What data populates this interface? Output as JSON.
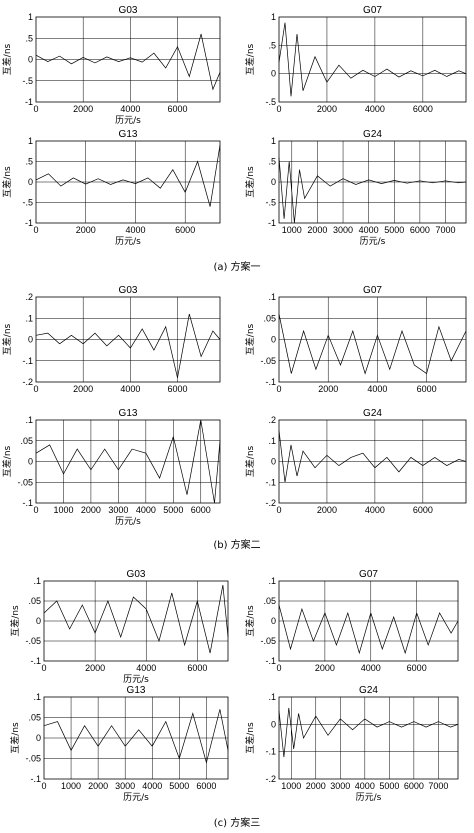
{
  "figure": {
    "captions": [
      "(a) 方案一",
      "(b) 方案二",
      "(c) 方案三"
    ],
    "xlabel": "历元/s",
    "ylabel": "互差/ns"
  },
  "chart_data": [
    {
      "type": "line",
      "group": "(a) 方案一",
      "title": "G03",
      "xlabel": "历元/s",
      "ylabel": "互差/ns",
      "xlim": [
        0,
        7800
      ],
      "ylim": [
        -1,
        1
      ],
      "xticks": [
        0,
        2000,
        4000,
        6000
      ],
      "yticks": [
        -1,
        -0.5,
        0,
        0.5,
        1
      ],
      "grid": true,
      "series": [
        {
          "x": [
            0,
            500,
            1000,
            1500,
            2000,
            2500,
            3000,
            3500,
            4000,
            4500,
            5000,
            5500,
            6000,
            6500,
            7000,
            7500,
            7800
          ],
          "y": [
            0.1,
            -0.05,
            0.08,
            -0.1,
            0.05,
            -0.08,
            0.06,
            -0.05,
            0.04,
            -0.06,
            0.15,
            -0.2,
            0.3,
            -0.4,
            0.6,
            -0.7,
            -0.3
          ]
        }
      ]
    },
    {
      "type": "line",
      "group": "(a) 方案一",
      "title": "G07",
      "xlabel": "",
      "ylabel": "互差/ns",
      "xlim": [
        0,
        7800
      ],
      "ylim": [
        -0.5,
        1
      ],
      "xticks": [
        0,
        2000,
        4000,
        6000
      ],
      "yticks": [
        -0.5,
        0,
        0.5,
        1
      ],
      "grid": true,
      "series": [
        {
          "x": [
            0,
            250,
            500,
            750,
            1000,
            1500,
            2000,
            2500,
            3000,
            3500,
            4000,
            4500,
            5000,
            5500,
            6000,
            6500,
            7000,
            7500,
            7800
          ],
          "y": [
            0.2,
            0.9,
            -0.4,
            0.7,
            -0.3,
            0.3,
            -0.15,
            0.15,
            -0.08,
            0.06,
            -0.05,
            0.08,
            -0.06,
            0.05,
            -0.04,
            0.06,
            -0.05,
            0.05,
            0
          ]
        }
      ]
    },
    {
      "type": "line",
      "group": "(a) 方案一",
      "title": "G13",
      "xlabel": "历元/s",
      "ylabel": "互差/ns",
      "xlim": [
        0,
        7400
      ],
      "ylim": [
        -1,
        1
      ],
      "xticks": [
        0,
        2000,
        4000,
        6000
      ],
      "yticks": [
        -1,
        -0.5,
        0,
        0.5,
        1
      ],
      "grid": true,
      "series": [
        {
          "x": [
            0,
            500,
            1000,
            1500,
            2000,
            2500,
            3000,
            3500,
            4000,
            4500,
            5000,
            5500,
            6000,
            6500,
            7000,
            7400
          ],
          "y": [
            0.05,
            0.2,
            -0.1,
            0.1,
            -0.05,
            0.08,
            -0.06,
            0.05,
            -0.04,
            0.1,
            -0.15,
            0.3,
            -0.25,
            0.5,
            -0.6,
            0.9
          ]
        }
      ]
    },
    {
      "type": "line",
      "group": "(a) 方案一",
      "title": "G24",
      "xlabel": "历元/s",
      "ylabel": "互差/ns",
      "xlim": [
        500,
        7800
      ],
      "ylim": [
        -1,
        1
      ],
      "xticks": [
        1000,
        2000,
        3000,
        4000,
        5000,
        6000,
        7000
      ],
      "yticks": [
        -1,
        -0.5,
        0,
        0.5,
        1
      ],
      "grid": true,
      "series": [
        {
          "x": [
            500,
            700,
            900,
            1100,
            1300,
            1500,
            2000,
            2500,
            3000,
            3500,
            4000,
            4500,
            5000,
            5500,
            6000,
            6500,
            7000,
            7500,
            7800
          ],
          "y": [
            0.6,
            -0.9,
            0.5,
            -1,
            0.3,
            -0.4,
            0.15,
            -0.1,
            0.08,
            -0.06,
            0.05,
            -0.04,
            0.04,
            -0.03,
            0.03,
            -0.02,
            0.03,
            -0.02,
            0
          ]
        }
      ]
    },
    {
      "type": "line",
      "group": "(b) 方案二",
      "title": "G03",
      "xlabel": "",
      "ylabel": "互差/ns",
      "xlim": [
        0,
        7800
      ],
      "ylim": [
        -0.2,
        0.2
      ],
      "xticks": [
        0,
        2000,
        4000,
        6000
      ],
      "yticks": [
        -0.2,
        -0.1,
        0,
        0.1,
        0.2
      ],
      "grid": true,
      "series": [
        {
          "x": [
            0,
            500,
            1000,
            1500,
            2000,
            2500,
            3000,
            3500,
            4000,
            4500,
            5000,
            5500,
            6000,
            6500,
            7000,
            7500,
            7800
          ],
          "y": [
            0.02,
            0.03,
            -0.02,
            0.02,
            -0.02,
            0.03,
            -0.03,
            0.02,
            -0.04,
            0.05,
            -0.05,
            0.06,
            -0.18,
            0.12,
            -0.08,
            0.04,
            0
          ]
        }
      ]
    },
    {
      "type": "line",
      "group": "(b) 方案二",
      "title": "G07",
      "xlabel": "",
      "ylabel": "互差/ns",
      "xlim": [
        0,
        7600
      ],
      "ylim": [
        -0.1,
        0.1
      ],
      "xticks": [
        0,
        2000,
        4000,
        6000
      ],
      "yticks": [
        -0.1,
        -0.05,
        0,
        0.05,
        0.1
      ],
      "grid": true,
      "series": [
        {
          "x": [
            0,
            500,
            1000,
            1500,
            2000,
            2500,
            3000,
            3500,
            4000,
            4500,
            5000,
            5500,
            6000,
            6500,
            7000,
            7600
          ],
          "y": [
            0.06,
            -0.08,
            0.02,
            -0.07,
            0.01,
            -0.06,
            0.02,
            -0.08,
            0.01,
            -0.07,
            0.02,
            -0.06,
            -0.08,
            0.03,
            -0.05,
            0.02
          ]
        }
      ]
    },
    {
      "type": "line",
      "group": "(b) 方案二",
      "title": "G13",
      "xlabel": "历元/s",
      "ylabel": "互差/ns",
      "xlim": [
        0,
        6700
      ],
      "ylim": [
        -0.1,
        0.1
      ],
      "xticks": [
        0,
        1000,
        2000,
        3000,
        4000,
        5000,
        6000
      ],
      "yticks": [
        -0.1,
        -0.05,
        0,
        0.05,
        0.1
      ],
      "grid": true,
      "series": [
        {
          "x": [
            0,
            500,
            1000,
            1500,
            2000,
            2500,
            3000,
            3500,
            4000,
            4500,
            5000,
            5500,
            6000,
            6500,
            6700
          ],
          "y": [
            0.02,
            0.04,
            -0.03,
            0.03,
            -0.02,
            0.03,
            -0.02,
            0.03,
            0.02,
            -0.04,
            0.06,
            -0.08,
            0.1,
            -0.1,
            0.05
          ]
        }
      ]
    },
    {
      "type": "line",
      "group": "(b) 方案二",
      "title": "G24",
      "xlabel": "",
      "ylabel": "互差/ns",
      "xlim": [
        0,
        7800
      ],
      "ylim": [
        -0.2,
        0.2
      ],
      "xticks": [
        0,
        2000,
        4000,
        6000
      ],
      "yticks": [
        -0.2,
        -0.1,
        0,
        0.1,
        0.2
      ],
      "grid": true,
      "series": [
        {
          "x": [
            0,
            250,
            500,
            750,
            1000,
            1500,
            2000,
            2500,
            3000,
            3500,
            4000,
            4500,
            5000,
            5500,
            6000,
            6500,
            7000,
            7500,
            7800
          ],
          "y": [
            0.15,
            -0.1,
            0.08,
            -0.07,
            0.05,
            -0.03,
            0.03,
            -0.02,
            0.02,
            0.04,
            -0.03,
            0.02,
            -0.05,
            0.02,
            -0.02,
            0.02,
            -0.02,
            0.01,
            0
          ]
        }
      ]
    },
    {
      "type": "line",
      "group": "(c) 方案三",
      "title": "G03",
      "xlabel": "历元/s",
      "ylabel": "互差/ns",
      "xlim": [
        0,
        7200
      ],
      "ylim": [
        -0.1,
        0.1
      ],
      "xticks": [
        0,
        2000,
        4000,
        6000
      ],
      "yticks": [
        -0.1,
        -0.05,
        0,
        0.05,
        0.1
      ],
      "grid": true,
      "series": [
        {
          "x": [
            0,
            500,
            1000,
            1500,
            2000,
            2500,
            3000,
            3500,
            4000,
            4500,
            5000,
            5500,
            6000,
            6500,
            7000,
            7200
          ],
          "y": [
            0.02,
            0.05,
            -0.02,
            0.04,
            -0.03,
            0.05,
            -0.04,
            0.06,
            0.03,
            -0.05,
            0.07,
            -0.06,
            0.05,
            -0.08,
            0.09,
            -0.04
          ]
        }
      ]
    },
    {
      "type": "line",
      "group": "(c) 方案三",
      "title": "G07",
      "xlabel": "",
      "ylabel": "互差/ns",
      "xlim": [
        0,
        7800
      ],
      "ylim": [
        -0.1,
        0.1
      ],
      "xticks": [
        0,
        2000,
        4000,
        6000
      ],
      "yticks": [
        -0.1,
        -0.05,
        0,
        0.05,
        0.1
      ],
      "grid": true,
      "series": [
        {
          "x": [
            0,
            500,
            1000,
            1500,
            2000,
            2500,
            3000,
            3500,
            4000,
            4500,
            5000,
            5500,
            6000,
            6500,
            7000,
            7500,
            7800
          ],
          "y": [
            0.04,
            -0.07,
            0.03,
            -0.05,
            0.02,
            -0.06,
            0.02,
            -0.08,
            0.02,
            -0.07,
            0.01,
            -0.08,
            0.02,
            -0.06,
            0.02,
            -0.03,
            0
          ]
        }
      ]
    },
    {
      "type": "line",
      "group": "(c) 方案三",
      "title": "G13",
      "xlabel": "历元/s",
      "ylabel": "互差/ns",
      "xlim": [
        0,
        6800
      ],
      "ylim": [
        -0.1,
        0.1
      ],
      "xticks": [
        0,
        1000,
        2000,
        3000,
        4000,
        5000,
        6000
      ],
      "yticks": [
        -0.1,
        -0.05,
        0,
        0.05,
        0.1
      ],
      "grid": true,
      "series": [
        {
          "x": [
            0,
            500,
            1000,
            1500,
            2000,
            2500,
            3000,
            3500,
            4000,
            4500,
            5000,
            5500,
            6000,
            6500,
            6800
          ],
          "y": [
            0.03,
            0.04,
            -0.03,
            0.03,
            -0.02,
            0.03,
            -0.02,
            0.02,
            -0.02,
            0.04,
            -0.05,
            0.06,
            -0.06,
            0.07,
            -0.03
          ]
        }
      ]
    },
    {
      "type": "line",
      "group": "(c) 方案三",
      "title": "G24",
      "xlabel": "历元/s",
      "ylabel": "互差/ns",
      "xlim": [
        500,
        7800
      ],
      "ylim": [
        -0.2,
        0.1
      ],
      "xticks": [
        1000,
        2000,
        3000,
        4000,
        5000,
        6000,
        7000
      ],
      "yticks": [
        -0.2,
        -0.1,
        0,
        0.1
      ],
      "grid": true,
      "series": [
        {
          "x": [
            500,
            700,
            900,
            1100,
            1300,
            1500,
            2000,
            2500,
            3000,
            3500,
            4000,
            4500,
            5000,
            5500,
            6000,
            6500,
            7000,
            7500,
            7800
          ],
          "y": [
            0.05,
            -0.12,
            0.06,
            -0.09,
            0.04,
            -0.05,
            0.03,
            -0.04,
            0.02,
            -0.02,
            0.02,
            -0.01,
            0.01,
            -0.01,
            0.01,
            -0.01,
            0.01,
            -0.01,
            0
          ]
        }
      ]
    }
  ]
}
